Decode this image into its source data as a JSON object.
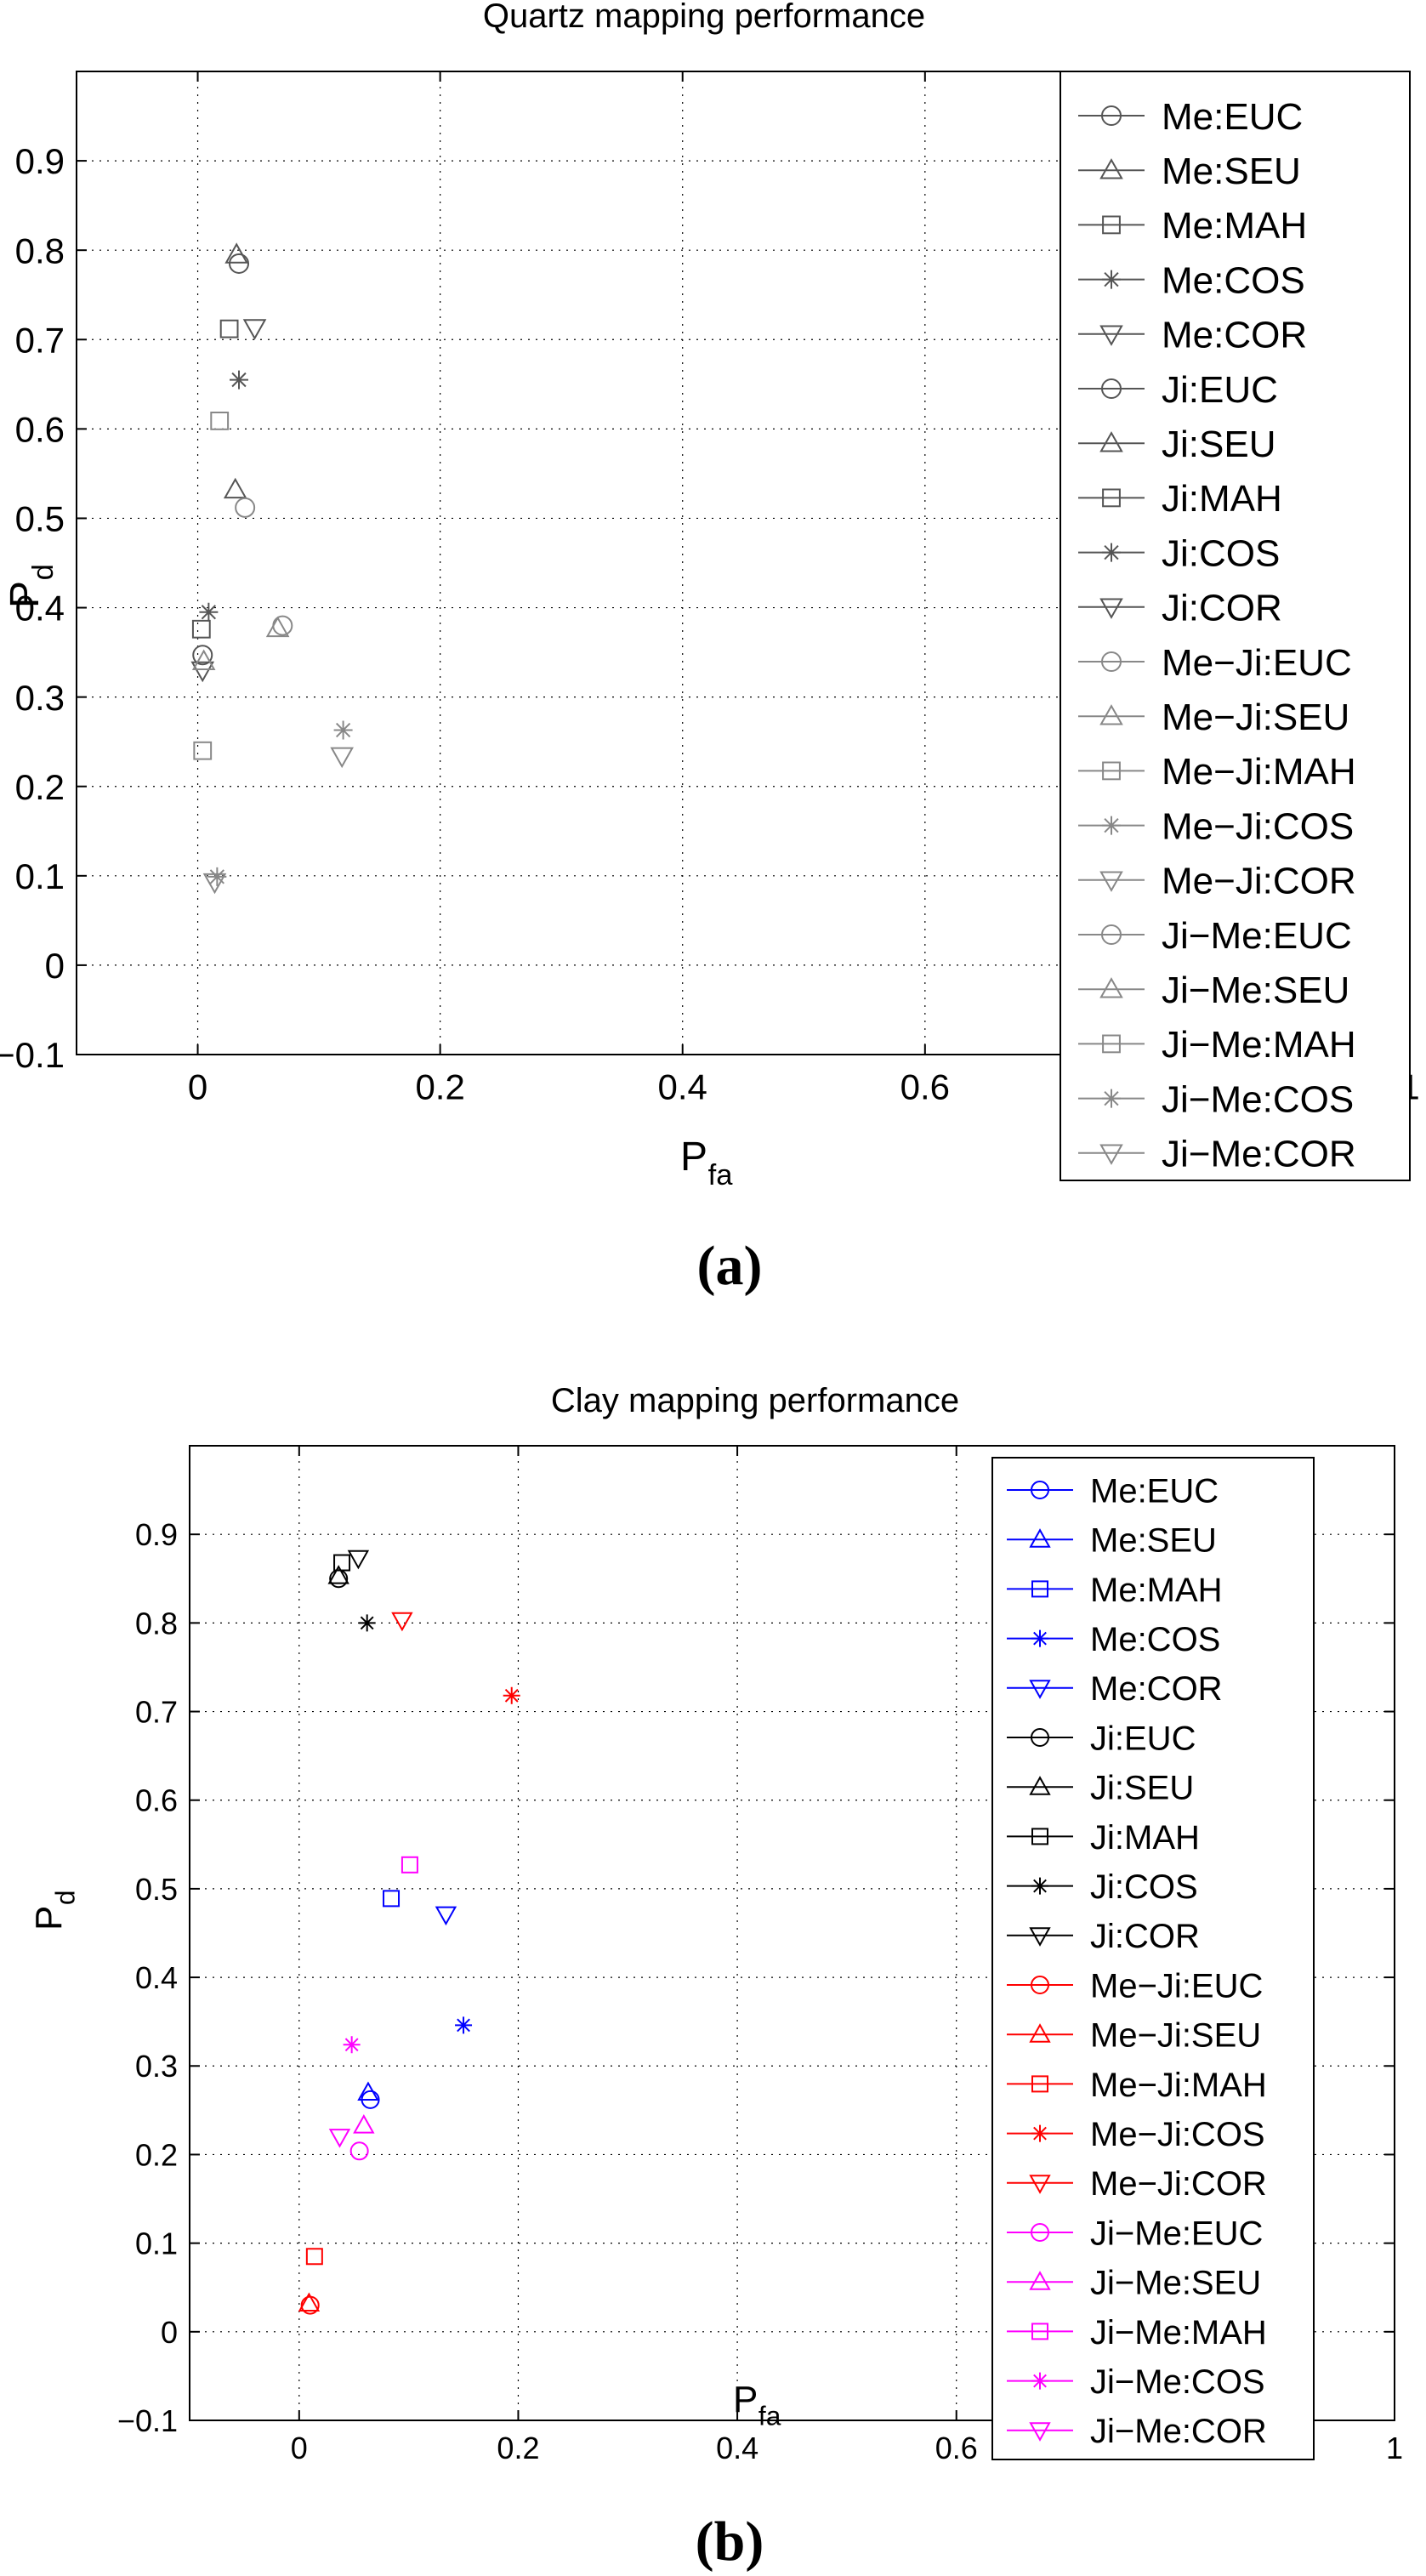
{
  "chart_data": [
    {
      "type": "scatter",
      "panel_label": "(a)",
      "title": "Quartz mapping performance",
      "xlabel": "P",
      "xlabel_sub": "fa",
      "ylabel": "P",
      "ylabel_sub": "d",
      "xlim": [
        -0.1,
        1.0
      ],
      "ylim": [
        -0.1,
        1.0
      ],
      "xticks": [
        0,
        0.2,
        0.4,
        0.6,
        1
      ],
      "xtick_labels": [
        "0",
        "0.2",
        "0.4",
        "0.6",
        "1"
      ],
      "yticks": [
        -0.1,
        0,
        0.1,
        0.2,
        0.3,
        0.4,
        0.5,
        0.6,
        0.7,
        0.8,
        0.9
      ],
      "ytick_labels": [
        "−0.1",
        "0",
        "0.1",
        "0.2",
        "0.3",
        "0.4",
        "0.5",
        "0.6",
        "0.7",
        "0.8",
        "0.9"
      ],
      "grid": true,
      "legend_position": "top-right",
      "series": [
        {
          "name": "Me:EUC",
          "marker": "circle",
          "color": "#555555",
          "points": [
            [
              0.034,
              0.785
            ]
          ]
        },
        {
          "name": "Me:SEU",
          "marker": "triangle-up",
          "color": "#555555",
          "points": [
            [
              0.032,
              0.795
            ]
          ]
        },
        {
          "name": "Me:MAH",
          "marker": "square",
          "color": "#555555",
          "points": [
            [
              0.026,
              0.712
            ]
          ]
        },
        {
          "name": "Me:COS",
          "marker": "asterisk",
          "color": "#555555",
          "points": [
            [
              0.034,
              0.655
            ]
          ]
        },
        {
          "name": "Me:COR",
          "marker": "triangle-down",
          "color": "#555555",
          "points": [
            [
              0.047,
              0.713
            ]
          ]
        },
        {
          "name": "Ji:EUC",
          "marker": "circle",
          "color": "#555555",
          "points": [
            [
              0.004,
              0.347
            ]
          ]
        },
        {
          "name": "Ji:SEU",
          "marker": "triangle-up",
          "color": "#555555",
          "points": [
            [
              0.031,
              0.532
            ]
          ]
        },
        {
          "name": "Ji:MAH",
          "marker": "square",
          "color": "#555555",
          "points": [
            [
              0.003,
              0.376
            ]
          ]
        },
        {
          "name": "Ji:COS",
          "marker": "asterisk",
          "color": "#555555",
          "points": [
            [
              0.009,
              0.395
            ]
          ]
        },
        {
          "name": "Ji:COR",
          "marker": "triangle-down",
          "color": "#555555",
          "points": [
            [
              0.004,
              0.33
            ]
          ]
        },
        {
          "name": "Me−Ji:EUC",
          "marker": "circle",
          "color": "#888888",
          "points": [
            [
              0.039,
              0.512
            ]
          ]
        },
        {
          "name": "Me−Ji:SEU",
          "marker": "triangle-up",
          "color": "#888888",
          "points": [
            [
              0.066,
              0.377
            ]
          ]
        },
        {
          "name": "Me−Ji:MAH",
          "marker": "square",
          "color": "#888888",
          "points": [
            [
              0.018,
              0.609
            ]
          ]
        },
        {
          "name": "Me−Ji:COS",
          "marker": "asterisk",
          "color": "#888888",
          "points": [
            [
              0.12,
              0.263
            ]
          ]
        },
        {
          "name": "Me−Ji:COR",
          "marker": "triangle-down",
          "color": "#888888",
          "points": [
            [
              0.119,
              0.234
            ]
          ]
        },
        {
          "name": "Ji−Me:EUC",
          "marker": "circle",
          "color": "#888888",
          "points": [
            [
              0.07,
              0.38
            ]
          ]
        },
        {
          "name": "Ji−Me:SEU",
          "marker": "triangle-up",
          "color": "#888888",
          "points": [
            [
              0.005,
              0.34
            ]
          ]
        },
        {
          "name": "Ji−Me:MAH",
          "marker": "square",
          "color": "#888888",
          "points": [
            [
              0.004,
              0.24
            ]
          ]
        },
        {
          "name": "Ji−Me:COS",
          "marker": "asterisk",
          "color": "#888888",
          "points": [
            [
              0.016,
              0.099
            ]
          ]
        },
        {
          "name": "Ji−Me:COR",
          "marker": "triangle-down",
          "color": "#888888",
          "points": [
            [
              0.014,
              0.093
            ]
          ]
        }
      ]
    },
    {
      "type": "scatter",
      "panel_label": "(b)",
      "title": "Clay mapping performance",
      "xlabel": "P",
      "xlabel_sub": "fa",
      "ylabel": "P",
      "ylabel_sub": "d",
      "xlim": [
        -0.1,
        1.0
      ],
      "ylim": [
        -0.1,
        1.0
      ],
      "xticks": [
        0,
        0.2,
        0.4,
        0.6,
        1
      ],
      "xtick_labels": [
        "0",
        "0.2",
        "0.4",
        "0.6",
        "1"
      ],
      "yticks": [
        -0.1,
        0,
        0.1,
        0.2,
        0.3,
        0.4,
        0.5,
        0.6,
        0.7,
        0.8,
        0.9
      ],
      "ytick_labels": [
        "−0.1",
        "0",
        "0.1",
        "0.2",
        "0.3",
        "0.4",
        "0.5",
        "0.6",
        "0.7",
        "0.8",
        "0.9"
      ],
      "grid": true,
      "legend_position": "top-right",
      "series": [
        {
          "name": "Me:EUC",
          "marker": "circle",
          "color": "#0000ff",
          "points": [
            [
              0.065,
              0.262
            ]
          ]
        },
        {
          "name": "Me:SEU",
          "marker": "triangle-up",
          "color": "#0000ff",
          "points": [
            [
              0.063,
              0.27
            ]
          ]
        },
        {
          "name": "Me:MAH",
          "marker": "square",
          "color": "#0000ff",
          "points": [
            [
              0.084,
              0.489
            ]
          ]
        },
        {
          "name": "Me:COS",
          "marker": "asterisk",
          "color": "#0000ff",
          "points": [
            [
              0.15,
              0.346
            ]
          ]
        },
        {
          "name": "Me:COR",
          "marker": "triangle-down",
          "color": "#0000ff",
          "points": [
            [
              0.134,
              0.471
            ]
          ]
        },
        {
          "name": "Ji:EUC",
          "marker": "circle",
          "color": "#000000",
          "points": [
            [
              0.036,
              0.85
            ]
          ]
        },
        {
          "name": "Ji:SEU",
          "marker": "triangle-up",
          "color": "#000000",
          "points": [
            [
              0.036,
              0.853
            ]
          ]
        },
        {
          "name": "Ji:MAH",
          "marker": "square",
          "color": "#000000",
          "points": [
            [
              0.039,
              0.868
            ]
          ]
        },
        {
          "name": "Ji:COS",
          "marker": "asterisk",
          "color": "#000000",
          "points": [
            [
              0.062,
              0.8
            ]
          ]
        },
        {
          "name": "Ji:COR",
          "marker": "triangle-down",
          "color": "#000000",
          "points": [
            [
              0.054,
              0.873
            ]
          ]
        },
        {
          "name": "Me−Ji:EUC",
          "marker": "circle",
          "color": "#ff0000",
          "points": [
            [
              0.01,
              0.03
            ]
          ]
        },
        {
          "name": "Me−Ji:SEU",
          "marker": "triangle-up",
          "color": "#ff0000",
          "points": [
            [
              0.009,
              0.032
            ]
          ]
        },
        {
          "name": "Me−Ji:MAH",
          "marker": "square",
          "color": "#ff0000",
          "points": [
            [
              0.014,
              0.085
            ]
          ]
        },
        {
          "name": "Me−Ji:COS",
          "marker": "asterisk",
          "color": "#ff0000",
          "points": [
            [
              0.194,
              0.718
            ]
          ]
        },
        {
          "name": "Me−Ji:COR",
          "marker": "triangle-down",
          "color": "#ff0000",
          "points": [
            [
              0.094,
              0.803
            ]
          ]
        },
        {
          "name": "Ji−Me:EUC",
          "marker": "circle",
          "color": "#ff00ff",
          "points": [
            [
              0.055,
              0.204
            ]
          ]
        },
        {
          "name": "Ji−Me:SEU",
          "marker": "triangle-up",
          "color": "#ff00ff",
          "points": [
            [
              0.059,
              0.233
            ]
          ]
        },
        {
          "name": "Ji−Me:MAH",
          "marker": "square",
          "color": "#ff00ff",
          "points": [
            [
              0.101,
              0.527
            ]
          ]
        },
        {
          "name": "Ji−Me:COS",
          "marker": "asterisk",
          "color": "#ff00ff",
          "points": [
            [
              0.048,
              0.324
            ]
          ]
        },
        {
          "name": "Ji−Me:COR",
          "marker": "triangle-down",
          "color": "#ff00ff",
          "points": [
            [
              0.037,
              0.22
            ]
          ]
        }
      ]
    }
  ]
}
